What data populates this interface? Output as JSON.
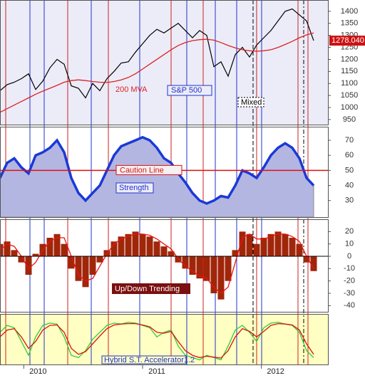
{
  "chart_data": [
    {
      "type": "line",
      "xlim": [
        2009.8,
        2012.56
      ],
      "ylim": [
        929,
        1447
      ],
      "yticks": [
        950,
        1000,
        1050,
        1100,
        1150,
        1200,
        1250,
        1300,
        1350,
        1400
      ],
      "x": [
        2009.8,
        2009.86,
        2009.92,
        2009.98,
        2010.04,
        2010.1,
        2010.16,
        2010.22,
        2010.28,
        2010.34,
        2010.4,
        2010.46,
        2010.52,
        2010.58,
        2010.64,
        2010.7,
        2010.76,
        2010.82,
        2010.88,
        2010.94,
        2011.0,
        2011.06,
        2011.12,
        2011.18,
        2011.24,
        2011.3,
        2011.36,
        2011.42,
        2011.48,
        2011.54,
        2011.6,
        2011.66,
        2011.72,
        2011.78,
        2011.84,
        2011.9,
        2011.96,
        2012.02,
        2012.08,
        2012.14,
        2012.2,
        2012.26,
        2012.32,
        2012.38,
        2012.44
      ],
      "series": [
        {
          "name": "S&P 500",
          "color": "#000000",
          "values": [
            1070,
            1095,
            1105,
            1120,
            1140,
            1075,
            1110,
            1165,
            1200,
            1180,
            1090,
            1080,
            1040,
            1100,
            1070,
            1120,
            1150,
            1185,
            1190,
            1230,
            1265,
            1300,
            1325,
            1310,
            1330,
            1350,
            1320,
            1290,
            1320,
            1300,
            1170,
            1190,
            1130,
            1220,
            1250,
            1210,
            1260,
            1290,
            1320,
            1360,
            1400,
            1410,
            1385,
            1360,
            1278.04
          ]
        },
        {
          "name": "200 MVA",
          "color": "#dd2222",
          "values": [
            980,
            995,
            1010,
            1025,
            1040,
            1055,
            1068,
            1080,
            1092,
            1105,
            1112,
            1115,
            1112,
            1108,
            1105,
            1104,
            1108,
            1115,
            1125,
            1140,
            1160,
            1180,
            1200,
            1220,
            1240,
            1258,
            1270,
            1278,
            1282,
            1284,
            1280,
            1270,
            1258,
            1248,
            1240,
            1236,
            1234,
            1236,
            1240,
            1250,
            1262,
            1275,
            1290,
            1302,
            1310
          ]
        }
      ],
      "last_label": "1278.040",
      "annotation": "Mixed"
    },
    {
      "type": "area",
      "xlim": [
        2009.8,
        2012.56
      ],
      "ylim": [
        19,
        79
      ],
      "yticks": [
        30,
        40,
        50,
        60,
        70
      ],
      "x": [
        2009.8,
        2009.86,
        2009.92,
        2009.98,
        2010.04,
        2010.1,
        2010.16,
        2010.22,
        2010.28,
        2010.34,
        2010.4,
        2010.46,
        2010.52,
        2010.58,
        2010.64,
        2010.7,
        2010.76,
        2010.82,
        2010.88,
        2010.94,
        2011.0,
        2011.06,
        2011.12,
        2011.18,
        2011.24,
        2011.3,
        2011.36,
        2011.42,
        2011.48,
        2011.54,
        2011.6,
        2011.66,
        2011.72,
        2011.78,
        2011.84,
        2011.9,
        2011.96,
        2012.02,
        2012.08,
        2012.14,
        2012.2,
        2012.26,
        2012.32,
        2012.38,
        2012.44
      ],
      "series": [
        {
          "name": "Strength",
          "color": "#1a3ad6",
          "fill": "#b4b6e2",
          "values": [
            45,
            55,
            58,
            52,
            48,
            60,
            62,
            65,
            70,
            62,
            45,
            35,
            30,
            35,
            40,
            50,
            60,
            66,
            68,
            70,
            72,
            70,
            65,
            58,
            55,
            48,
            42,
            35,
            30,
            28,
            30,
            33,
            32,
            40,
            50,
            48,
            45,
            52,
            60,
            65,
            68,
            65,
            58,
            45,
            40
          ]
        }
      ],
      "caution_line": {
        "value": 50,
        "label": "Caution Line"
      }
    },
    {
      "type": "bar",
      "xlim": [
        2009.8,
        2012.56
      ],
      "ylim": [
        -45,
        30
      ],
      "yticks": [
        20,
        10,
        0,
        -10,
        -20,
        -30,
        -40
      ],
      "x": [
        2009.8,
        2009.86,
        2009.92,
        2009.98,
        2010.04,
        2010.1,
        2010.16,
        2010.22,
        2010.28,
        2010.34,
        2010.4,
        2010.46,
        2010.52,
        2010.58,
        2010.64,
        2010.7,
        2010.76,
        2010.82,
        2010.88,
        2010.94,
        2011.0,
        2011.06,
        2011.12,
        2011.18,
        2011.24,
        2011.3,
        2011.36,
        2011.42,
        2011.48,
        2011.54,
        2011.6,
        2011.66,
        2011.72,
        2011.78,
        2011.84,
        2011.9,
        2011.96,
        2012.02,
        2012.08,
        2012.14,
        2012.2,
        2012.26,
        2012.32,
        2012.38,
        2012.44
      ],
      "series": [
        {
          "name": "Up/Down Trending",
          "color": "#a0260a",
          "values": [
            10,
            12,
            5,
            -5,
            -15,
            2,
            10,
            15,
            18,
            10,
            -10,
            -20,
            -25,
            -15,
            -5,
            5,
            12,
            16,
            18,
            20,
            18,
            16,
            12,
            8,
            4,
            -5,
            -10,
            -15,
            -18,
            -20,
            -30,
            -35,
            -20,
            5,
            20,
            18,
            10,
            15,
            18,
            20,
            18,
            15,
            10,
            -5,
            -12
          ]
        },
        {
          "type": "line",
          "color": "#ee1111",
          "values": [
            5,
            10,
            8,
            0,
            -10,
            -5,
            5,
            12,
            15,
            15,
            0,
            -15,
            -20,
            -18,
            -8,
            2,
            10,
            14,
            16,
            18,
            18,
            17,
            14,
            10,
            6,
            -2,
            -8,
            -12,
            -16,
            -18,
            -25,
            -30,
            -25,
            -5,
            15,
            18,
            14,
            14,
            16,
            18,
            18,
            16,
            12,
            0,
            -10
          ]
        }
      ]
    },
    {
      "type": "line",
      "title": "Hybrid S.T. Accelerator1.2",
      "xlim": [
        2009.8,
        2012.56
      ],
      "ylim": [
        0,
        110
      ],
      "xticks": [
        2010,
        2011,
        2012
      ],
      "x": [
        2009.8,
        2009.86,
        2009.92,
        2009.98,
        2010.04,
        2010.1,
        2010.16,
        2010.22,
        2010.28,
        2010.34,
        2010.4,
        2010.46,
        2010.52,
        2010.58,
        2010.64,
        2010.7,
        2010.76,
        2010.82,
        2010.88,
        2010.94,
        2011.0,
        2011.06,
        2011.12,
        2011.18,
        2011.24,
        2011.3,
        2011.36,
        2011.42,
        2011.48,
        2011.54,
        2011.6,
        2011.66,
        2011.72,
        2011.78,
        2011.84,
        2011.9,
        2011.96,
        2012.02,
        2012.08,
        2012.14,
        2012.2,
        2012.26,
        2012.32,
        2012.38,
        2012.44
      ],
      "series": [
        {
          "color": "#33cc33",
          "values": [
            70,
            85,
            80,
            50,
            20,
            60,
            85,
            90,
            88,
            60,
            20,
            15,
            30,
            55,
            70,
            85,
            90,
            88,
            92,
            90,
            85,
            80,
            60,
            70,
            75,
            40,
            20,
            15,
            10,
            20,
            15,
            10,
            40,
            75,
            85,
            70,
            50,
            80,
            90,
            92,
            88,
            85,
            70,
            30,
            15
          ]
        },
        {
          "color": "#dd1111",
          "values": [
            60,
            75,
            78,
            60,
            35,
            50,
            75,
            85,
            86,
            70,
            35,
            22,
            28,
            45,
            62,
            78,
            86,
            88,
            89,
            89,
            86,
            82,
            70,
            68,
            72,
            50,
            30,
            20,
            15,
            18,
            16,
            14,
            30,
            60,
            78,
            72,
            60,
            72,
            85,
            89,
            88,
            86,
            75,
            45,
            22
          ]
        }
      ]
    }
  ]
}
